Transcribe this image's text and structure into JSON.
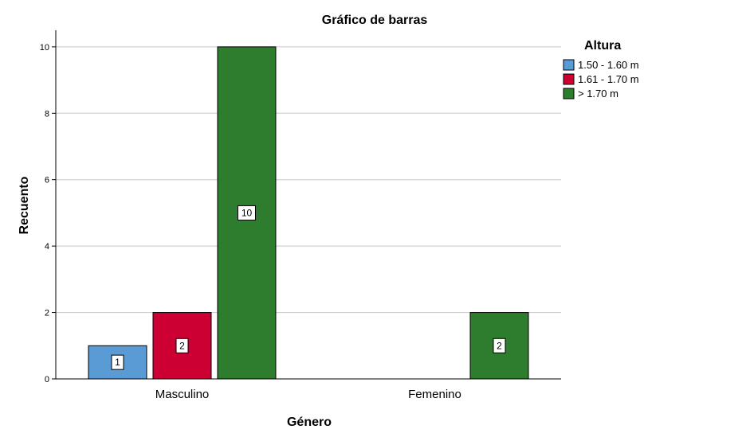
{
  "chart_data": {
    "type": "bar",
    "title": "Gráfico de barras",
    "xlabel": "Género",
    "ylabel": "Recuento",
    "categories": [
      "Masculino",
      "Femenino"
    ],
    "ylim": [
      0,
      10.5
    ],
    "yticks": [
      0,
      2,
      4,
      6,
      8,
      10
    ],
    "grid": true,
    "legend": {
      "title": "Altura",
      "placement": "top-right"
    },
    "series": [
      {
        "name": "1.50 - 1.60 m",
        "color": "#5b9bd5",
        "values": [
          1,
          null
        ]
      },
      {
        "name": "1.61 - 1.70 m",
        "color": "#cc0033",
        "values": [
          2,
          null
        ]
      },
      {
        "name": "> 1.70 m",
        "color": "#2e7d2e",
        "values": [
          10,
          2
        ]
      }
    ]
  }
}
